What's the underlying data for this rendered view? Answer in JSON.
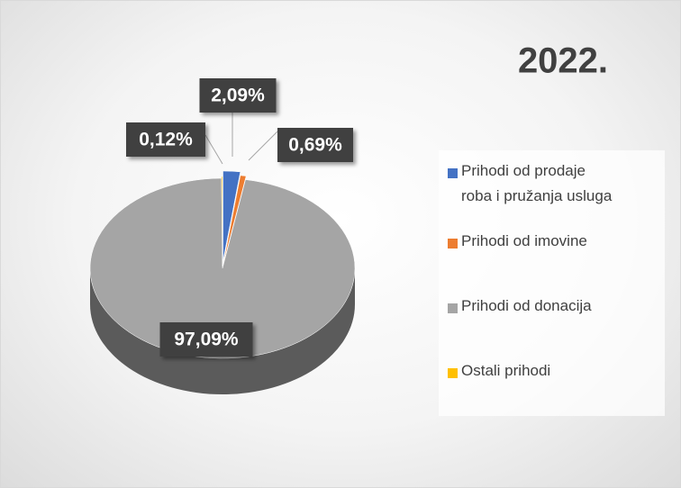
{
  "chart_data": {
    "type": "pie",
    "title": "2022.",
    "categories": [
      "Prihodi od prodaje roba i pružanja usluga",
      "Prihodi od imovine",
      "Prihodi od donacija",
      "Ostali prihodi"
    ],
    "values": [
      2.09,
      0.69,
      97.09,
      0.12
    ],
    "value_labels": [
      "2,09%",
      "0,69%",
      "97,09%",
      "0,12%"
    ],
    "colors": [
      "#4472c4",
      "#ed7d31",
      "#a5a5a5",
      "#ffc000"
    ],
    "legend": "right"
  }
}
